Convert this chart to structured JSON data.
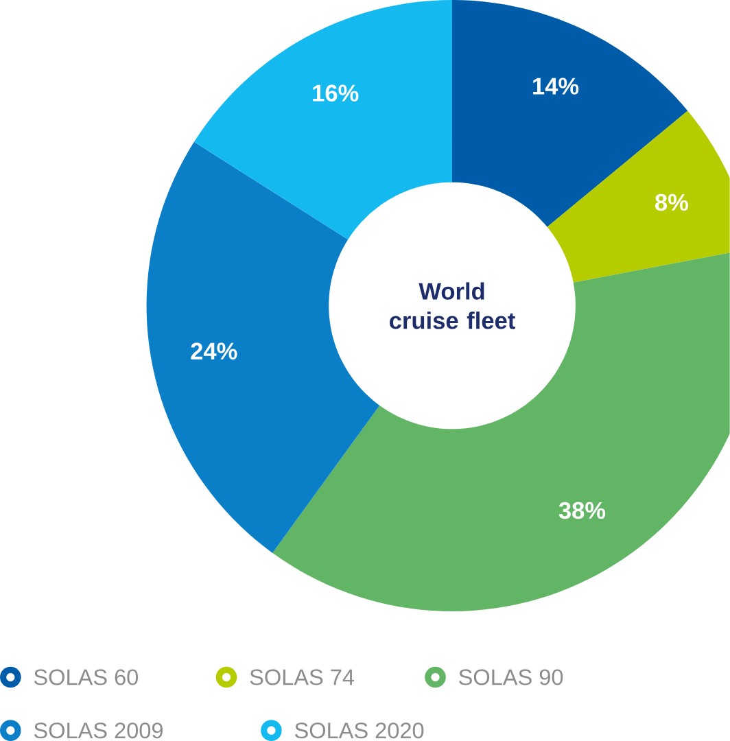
{
  "chart_data": {
    "type": "donut",
    "title": "World cruise fleet",
    "categories": [
      "SOLAS 60",
      "SOLAS 74",
      "SOLAS 90",
      "SOLAS 2009",
      "SOLAS 2020"
    ],
    "values": [
      14,
      8,
      38,
      24,
      16
    ],
    "value_labels": [
      "14%",
      "8%",
      "38%",
      "24%",
      "16%"
    ],
    "colors": [
      "#005ca9",
      "#b5cc00",
      "#62b565",
      "#0a7fc8",
      "#14b9ef"
    ],
    "legend": "bottom"
  }
}
